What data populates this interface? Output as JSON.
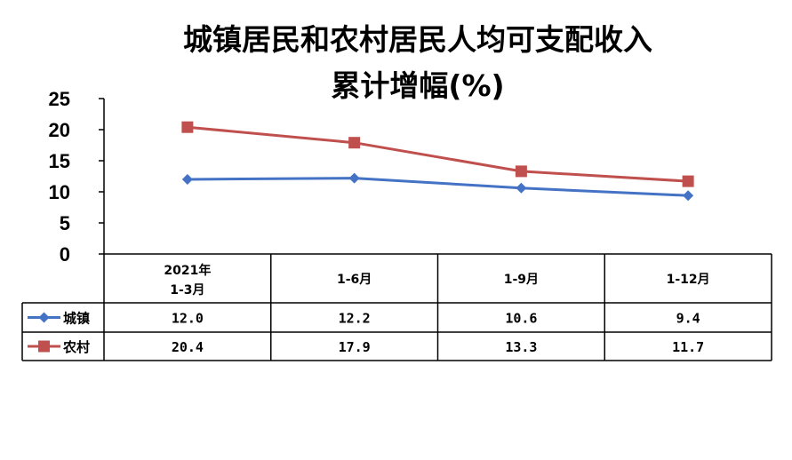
{
  "chart_data": {
    "type": "line",
    "title_line1": "城镇居民和农村居民人均可支配收入",
    "title_line2": "累计增幅(%)",
    "categories": [
      {
        "line1": "2021年",
        "line2": "1-3月"
      },
      {
        "line1": "1-6月",
        "line2": ""
      },
      {
        "line1": "1-9月",
        "line2": ""
      },
      {
        "line1": "1-12月",
        "line2": ""
      }
    ],
    "series": [
      {
        "name": "城镇",
        "color": "#4472C4",
        "marker": "diamond",
        "values": [
          12.0,
          12.2,
          10.6,
          9.4
        ],
        "labels": [
          "12.0",
          "12.2",
          "10.6",
          "9.4"
        ]
      },
      {
        "name": "农村",
        "color": "#C0504D",
        "marker": "square",
        "values": [
          20.4,
          17.9,
          13.3,
          11.7
        ],
        "labels": [
          "20.4",
          "17.9",
          "13.3",
          "11.7"
        ]
      }
    ],
    "yticks": [
      "0",
      "5",
      "10",
      "15",
      "20",
      "25"
    ],
    "ylim": [
      0,
      25
    ],
    "grid": false,
    "legend": "data-table"
  }
}
